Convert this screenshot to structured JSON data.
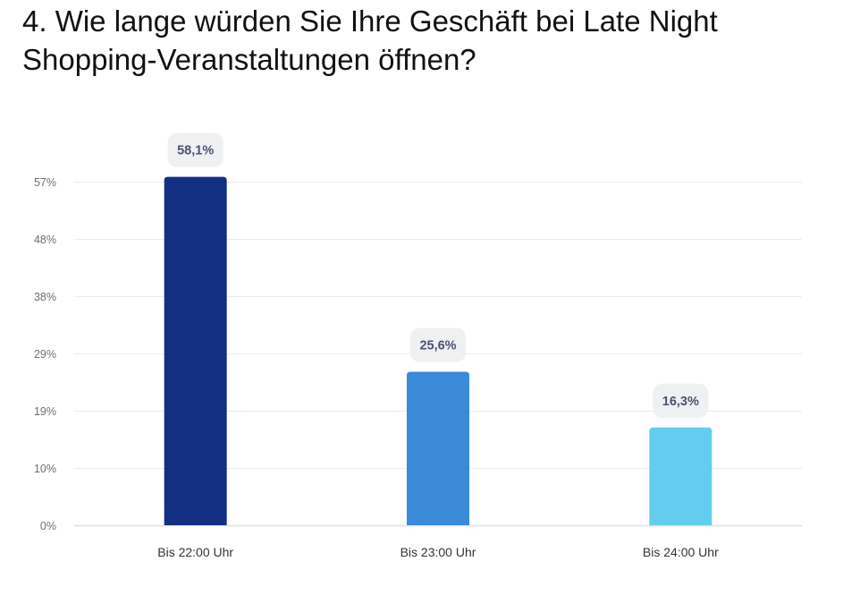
{
  "chart_data": {
    "type": "bar",
    "title": "4. Wie lange würden Sie Ihre Geschäft bei Late Night Shopping-Veranstaltungen öffnen?",
    "xlabel": "",
    "ylabel": "",
    "categories": [
      "Bis 22:00 Uhr",
      "Bis 23:00 Uhr",
      "Bis 24:00 Uhr"
    ],
    "values": [
      58.1,
      25.6,
      16.3
    ],
    "data_labels": [
      "58,1%",
      "25,6%",
      "16,3%"
    ],
    "colors": [
      "#122f82",
      "#3a8ad8",
      "#62cdee"
    ],
    "yticks": [
      0,
      9.55,
      19.1,
      28.65,
      38.2,
      47.75,
      57.3
    ],
    "ytick_labels": [
      "0%",
      "10%",
      "19%",
      "29%",
      "38%",
      "48%",
      "57%"
    ],
    "ylim": [
      0,
      57.3
    ],
    "grid": true,
    "legend": "none"
  }
}
